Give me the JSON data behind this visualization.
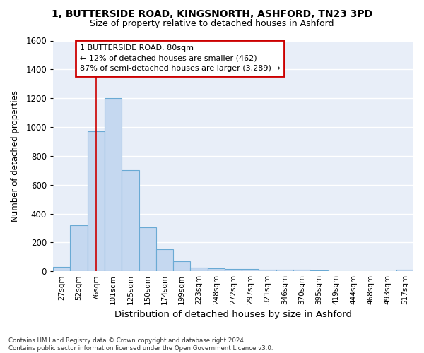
{
  "title1": "1, BUTTERSIDE ROAD, KINGSNORTH, ASHFORD, TN23 3PD",
  "title2": "Size of property relative to detached houses in Ashford",
  "xlabel": "Distribution of detached houses by size in Ashford",
  "ylabel": "Number of detached properties",
  "categories": [
    "27sqm",
    "52sqm",
    "76sqm",
    "101sqm",
    "125sqm",
    "150sqm",
    "174sqm",
    "199sqm",
    "223sqm",
    "248sqm",
    "272sqm",
    "297sqm",
    "321sqm",
    "346sqm",
    "370sqm",
    "395sqm",
    "419sqm",
    "444sqm",
    "468sqm",
    "493sqm",
    "517sqm"
  ],
  "values": [
    30,
    320,
    970,
    1200,
    700,
    305,
    155,
    70,
    25,
    20,
    15,
    15,
    10,
    10,
    10,
    5,
    0,
    0,
    0,
    0,
    10
  ],
  "bar_color": "#c5d8f0",
  "bar_edge_color": "#6aaad4",
  "highlight_bar_index": 2,
  "highlight_line_color": "#cc0000",
  "annotation_line1": "1 BUTTERSIDE ROAD: 80sqm",
  "annotation_line2": "← 12% of detached houses are smaller (462)",
  "annotation_line3": "87% of semi-detached houses are larger (3,289) →",
  "annotation_box_facecolor": "#ffffff",
  "annotation_box_edgecolor": "#cc0000",
  "ylim": [
    0,
    1600
  ],
  "yticks": [
    0,
    200,
    400,
    600,
    800,
    1000,
    1200,
    1400,
    1600
  ],
  "bg_color": "#e8eef8",
  "grid_color": "#ffffff",
  "fig_bg_color": "#ffffff",
  "footer_line1": "Contains HM Land Registry data © Crown copyright and database right 2024.",
  "footer_line2": "Contains public sector information licensed under the Open Government Licence v3.0."
}
